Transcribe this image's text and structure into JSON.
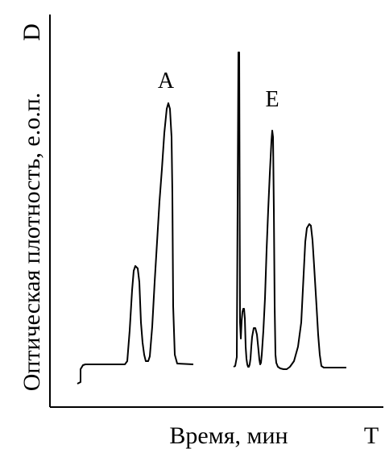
{
  "chart_data": {
    "type": "line",
    "title": "",
    "xlabel": "Время, мин",
    "ylabel": "Оптическая плотность, е.о.п.",
    "x_axis_symbol": "T",
    "y_axis_symbol": "D",
    "grid": false,
    "legend": "none",
    "annotations": [
      "A",
      "E"
    ],
    "series": [
      {
        "name": "A",
        "points": [
          [
            96,
            476
          ],
          [
            100,
            474
          ],
          [
            100,
            458
          ],
          [
            103,
            453
          ],
          [
            106,
            452
          ],
          [
            108,
            452
          ],
          [
            155,
            452
          ],
          [
            158,
            448
          ],
          [
            161,
            410
          ],
          [
            164,
            360
          ],
          [
            166,
            336
          ],
          [
            168,
            330
          ],
          [
            171,
            333
          ],
          [
            173,
            350
          ],
          [
            175,
            400
          ],
          [
            177,
            425
          ],
          [
            179,
            440
          ],
          [
            181,
            448
          ],
          [
            184,
            448
          ],
          [
            186,
            442
          ],
          [
            189,
            405
          ],
          [
            192,
            350
          ],
          [
            195,
            300
          ],
          [
            198,
            250
          ],
          [
            201,
            210
          ],
          [
            204,
            165
          ],
          [
            207,
            135
          ],
          [
            209,
            128
          ],
          [
            211,
            135
          ],
          [
            213,
            170
          ],
          [
            214,
            240
          ],
          [
            215,
            380
          ],
          [
            217,
            440
          ],
          [
            220,
            451
          ],
          [
            240,
            452
          ]
        ]
      },
      {
        "name": "E",
        "points": [
          [
            290,
            455
          ],
          [
            292,
            454
          ],
          [
            294,
            443
          ],
          [
            296,
            65
          ],
          [
            297,
            65
          ],
          [
            298,
            400
          ],
          [
            299,
            420
          ],
          [
            300,
            398
          ],
          [
            301,
            387
          ],
          [
            302,
            383
          ],
          [
            303,
            383
          ],
          [
            304,
            395
          ],
          [
            305,
            430
          ],
          [
            306,
            445
          ],
          [
            307,
            452
          ],
          [
            308,
            455
          ],
          [
            309,
            455
          ],
          [
            310,
            452
          ],
          [
            311,
            445
          ],
          [
            312,
            430
          ],
          [
            313,
            418
          ],
          [
            315,
            407
          ],
          [
            317,
            407
          ],
          [
            319,
            415
          ],
          [
            321,
            435
          ],
          [
            322,
            446
          ],
          [
            323,
            452
          ],
          [
            324,
            450
          ],
          [
            325,
            440
          ],
          [
            327,
            410
          ],
          [
            329,
            370
          ],
          [
            331,
            310
          ],
          [
            333,
            260
          ],
          [
            335,
            215
          ],
          [
            337,
            175
          ],
          [
            338,
            162
          ],
          [
            339,
            170
          ],
          [
            340,
            260
          ],
          [
            341,
            380
          ],
          [
            342,
            440
          ],
          [
            343,
            450
          ],
          [
            345,
            455
          ],
          [
            348,
            457
          ],
          [
            352,
            458
          ],
          [
            356,
            458
          ],
          [
            360,
            455
          ],
          [
            365,
            448
          ],
          [
            370,
            430
          ],
          [
            374,
            400
          ],
          [
            377,
            340
          ],
          [
            379,
            300
          ],
          [
            381,
            283
          ],
          [
            384,
            278
          ],
          [
            386,
            280
          ],
          [
            388,
            298
          ],
          [
            390,
            330
          ],
          [
            393,
            380
          ],
          [
            395,
            415
          ],
          [
            397,
            440
          ],
          [
            399,
            454
          ],
          [
            402,
            456
          ],
          [
            430,
            456
          ]
        ]
      }
    ]
  }
}
